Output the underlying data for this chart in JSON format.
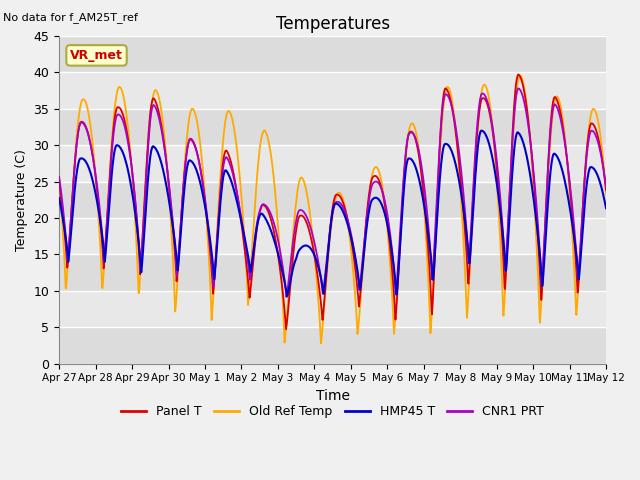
{
  "title": "Temperatures",
  "xlabel": "Time",
  "ylabel": "Temperature (C)",
  "top_left_text": "No data for f_AM25T_ref",
  "annotation_box": "VR_met",
  "ylim": [
    0,
    45
  ],
  "n_days": 15,
  "xtick_labels": [
    "Apr 27",
    "Apr 28",
    "Apr 29",
    "Apr 30",
    "May 1",
    "May 2",
    "May 3",
    "May 4",
    "May 5",
    "May 6",
    "May 7",
    "May 8",
    "May 9",
    "May 10",
    "May 11",
    "May 12"
  ],
  "series_colors": {
    "Panel T": "#dd0000",
    "Old Ref Temp": "#ffaa00",
    "HMP45 T": "#0000cc",
    "CNR1 PRT": "#aa00cc"
  },
  "fig_facecolor": "#f0f0f0",
  "plot_bg_color": "#e8e8e8",
  "grid_color": "#ffffff",
  "day_mins_panel": [
    13,
    13,
    12,
    11,
    9,
    9,
    3,
    7,
    8,
    5,
    7,
    12,
    9,
    8,
    10
  ],
  "day_maxs_panel": [
    33,
    35,
    37,
    31,
    30,
    22,
    20,
    23,
    25,
    31,
    38,
    36,
    40,
    37,
    33
  ],
  "day_mins_orange": [
    10,
    10,
    9,
    6,
    6,
    9,
    0,
    4,
    4,
    4,
    4,
    7,
    6,
    5,
    7
  ],
  "day_maxs_orange": [
    36,
    38,
    38,
    35,
    35,
    33,
    26,
    23,
    26,
    32,
    38,
    38,
    40,
    37,
    35
  ],
  "day_mins_blue": [
    14,
    14,
    12,
    13,
    11,
    13,
    8,
    10,
    10,
    9,
    12,
    14,
    12,
    10,
    12
  ],
  "day_maxs_blue": [
    28,
    30,
    30,
    28,
    27,
    21,
    15,
    22,
    22,
    28,
    30,
    32,
    32,
    29,
    27
  ],
  "day_mins_purple": [
    14,
    14,
    12,
    12,
    10,
    12,
    8,
    10,
    10,
    9,
    12,
    14,
    12,
    10,
    12
  ],
  "day_maxs_purple": [
    33,
    34,
    36,
    31,
    29,
    22,
    21,
    22,
    24,
    31,
    37,
    37,
    38,
    36,
    32
  ]
}
